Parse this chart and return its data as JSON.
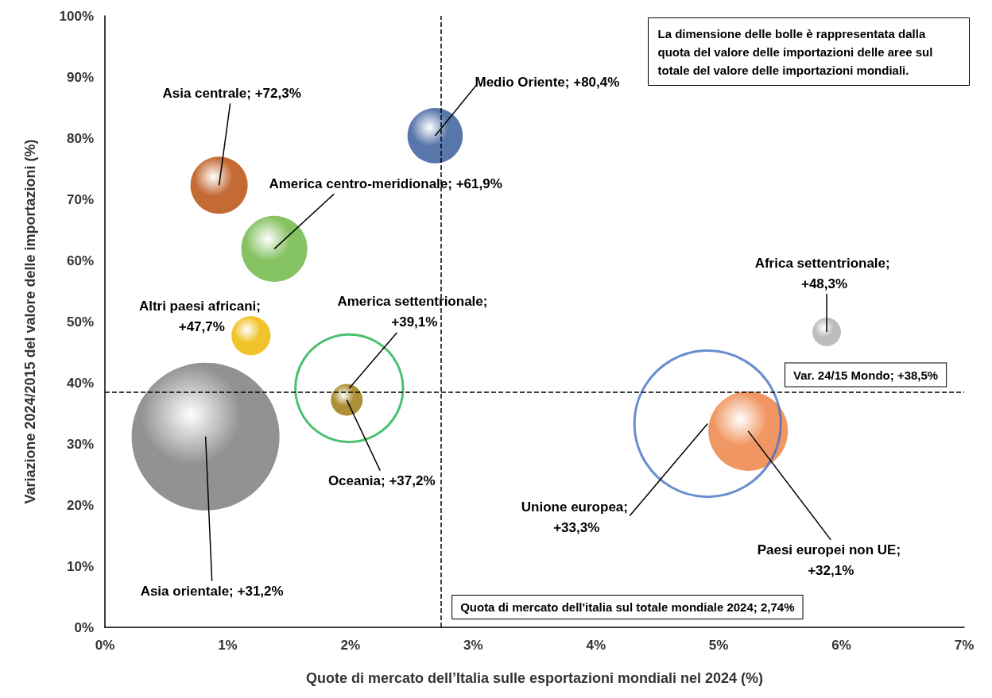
{
  "chart_data": {
    "type": "bubble",
    "xlabel": "Quote di mercato dell’Italia sulle esportazioni mondiali nel 2024 (%)",
    "ylabel": "Variazione 2024/2015 del valore delle importazioni (%)",
    "xlim": [
      0,
      7
    ],
    "ylim": [
      0,
      100
    ],
    "xticks": [
      {
        "value": 0,
        "label": "0%"
      },
      {
        "value": 1,
        "label": "1%"
      },
      {
        "value": 2,
        "label": "2%"
      },
      {
        "value": 3,
        "label": "3%"
      },
      {
        "value": 4,
        "label": "4%"
      },
      {
        "value": 5,
        "label": "5%"
      },
      {
        "value": 6,
        "label": "6%"
      },
      {
        "value": 7,
        "label": "7%"
      }
    ],
    "yticks": [
      {
        "value": 0,
        "label": "0%"
      },
      {
        "value": 10,
        "label": "10%"
      },
      {
        "value": 20,
        "label": "20%"
      },
      {
        "value": 30,
        "label": "30%"
      },
      {
        "value": 40,
        "label": "40%"
      },
      {
        "value": 50,
        "label": "50%"
      },
      {
        "value": 60,
        "label": "60%"
      },
      {
        "value": 70,
        "label": "70%"
      },
      {
        "value": 80,
        "label": "80%"
      },
      {
        "value": 90,
        "label": "90%"
      },
      {
        "value": 100,
        "label": "100%"
      }
    ],
    "grid": false,
    "series": [
      {
        "x": [
          0.93,
          2.69,
          1.38,
          1.19,
          0.82,
          1.97,
          5.24,
          5.88
        ],
        "values": [
          72.3,
          80.4,
          61.9,
          47.7,
          31.2,
          37.2,
          32.1,
          48.3
        ],
        "sizes": [
          0.15,
          0.14,
          0.2,
          0.07,
          1,
          0.046,
          0.29,
          0.037
        ],
        "colors": [
          "#c0622a",
          "#4f6fa6",
          "#7fbf5a",
          "#f0c020",
          "#8c8c8c",
          "#a88a2a",
          "#f0915a",
          "#b8b8b8"
        ]
      },
      {
        "x": [
          1.99,
          4.91
        ],
        "values": [
          39.1,
          33.3
        ],
        "sizes": [
          0.53,
          0.98
        ],
        "colors": [
          "#1bb04a",
          "#4472c4"
        ],
        "line_style": "solid"
      }
    ],
    "ref_lines": [
      {
        "axis": "x",
        "value": 2.74,
        "label": "Quota di mercato dell'italia sul totale mondiale 2024; 2,74%",
        "line_style": "dashed",
        "color": "#000000"
      },
      {
        "axis": "y",
        "value": 38.5,
        "label": "Var. 24/15 Mondo; +38,5%",
        "line_style": "dashed",
        "color": "#000000"
      }
    ],
    "annotations": [
      {
        "text": "Asia centrale; +72,3%",
        "x": 0.93,
        "y": 72.3
      },
      {
        "text": "Medio Oriente; +80,4%",
        "x": 2.69,
        "y": 80.4
      },
      {
        "text": "America centro-meridionale; +61,9%",
        "x": 1.38,
        "y": 61.9
      },
      {
        "text": "Altri paesi africani; +47,7%",
        "x": 1.19,
        "y": 47.7
      },
      {
        "text": "Asia orientale; +31,2%",
        "x": 0.82,
        "y": 31.2
      },
      {
        "text": "Oceania; +37,2%",
        "x": 1.97,
        "y": 37.2
      },
      {
        "text": "America settentrionale; +39,1%",
        "x": 1.99,
        "y": 39.1
      },
      {
        "text": "Unione europea; +33,3%",
        "x": 4.91,
        "y": 33.3
      },
      {
        "text": "Paesi europei non UE; +32,1%",
        "x": 5.24,
        "y": 32.1
      },
      {
        "text": "Africa settentrionale; +48,3%",
        "x": 5.88,
        "y": 48.3
      },
      "La dimensione delle bolle è rappresentata dalla quota del valore delle importazioni delle aree sul totale del valore delle importazioni mondiali."
    ]
  }
}
